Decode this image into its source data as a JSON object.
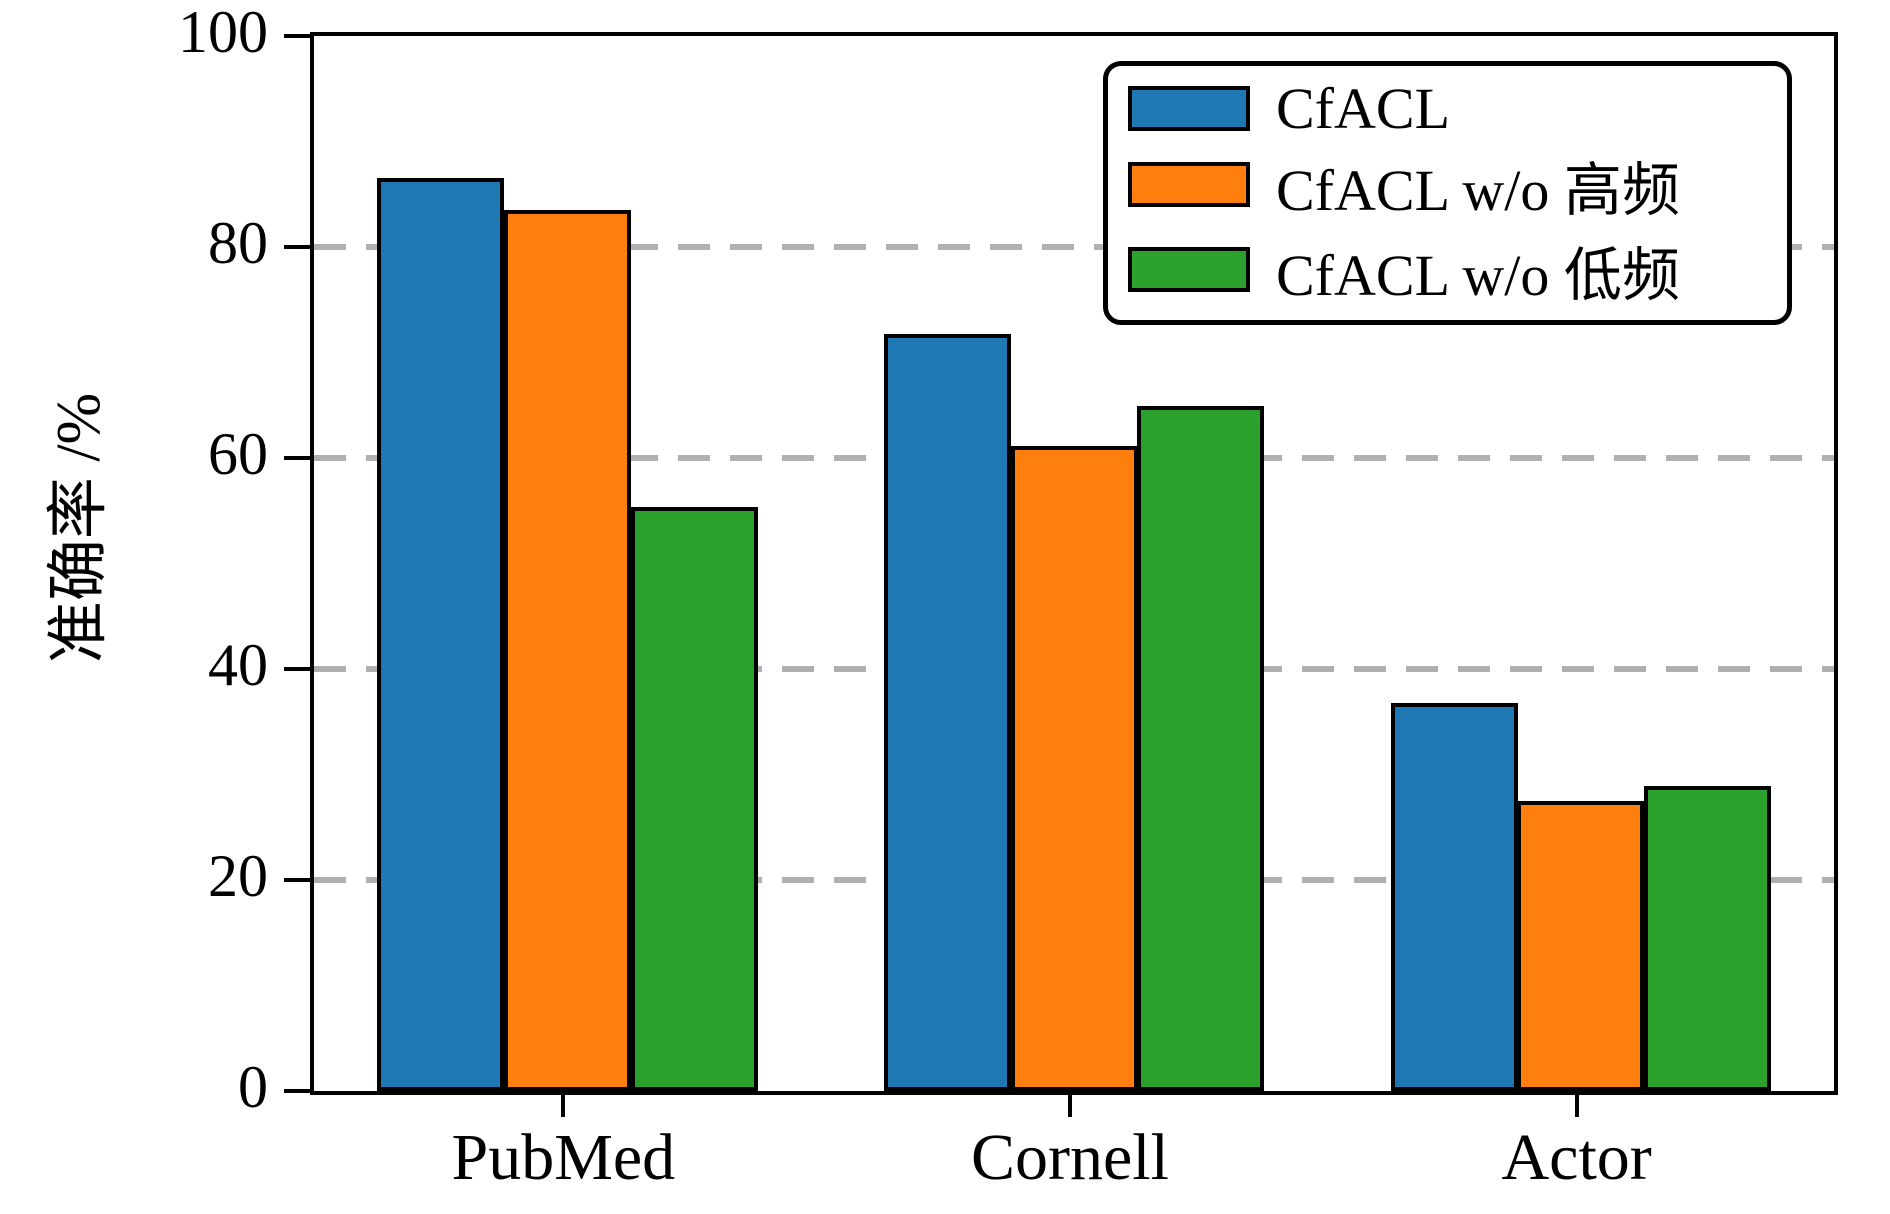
{
  "chart_data": {
    "type": "bar",
    "title": "",
    "xlabel": "",
    "ylabel": "准确率 /%",
    "categories": [
      "PubMed",
      "Cornell",
      "Actor"
    ],
    "series": [
      {
        "name": "CfACL",
        "color": "#1f77b4",
        "values": [
          86.5,
          71.8,
          36.8
        ]
      },
      {
        "name": "CfACL w/o 高频",
        "color": "#ff7f0e",
        "values": [
          83.5,
          61.1,
          27.5
        ]
      },
      {
        "name": "CfACL w/o 低频",
        "color": "#2ca02c",
        "values": [
          55.4,
          64.9,
          28.9
        ]
      }
    ],
    "ylim": [
      0,
      100
    ],
    "yticks": [
      0,
      20,
      40,
      60,
      80,
      100
    ],
    "grid": {
      "horizontal_at": [
        20,
        40,
        60,
        80
      ],
      "style": "dashed",
      "color": "#b0b0b0"
    },
    "legend": {
      "position": "upper-right"
    },
    "bar_edge_color": "#000000",
    "spine_color": "#000000"
  }
}
